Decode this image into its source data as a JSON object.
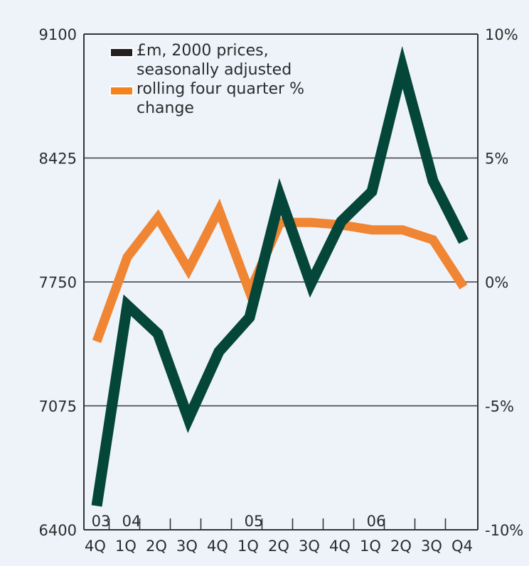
{
  "chart_data": {
    "type": "line",
    "title": "",
    "categories": [
      "4Q",
      "1Q",
      "2Q",
      "3Q",
      "4Q",
      "1Q",
      "2Q",
      "3Q",
      "4Q",
      "1Q",
      "2Q",
      "3Q",
      "Q4"
    ],
    "year_labels": [
      {
        "label": "03",
        "index": 0
      },
      {
        "label": "04",
        "index": 1
      },
      {
        "label": "05",
        "index": 5
      },
      {
        "label": "06",
        "index": 9
      }
    ],
    "left_axis": {
      "ylim": [
        6400,
        9100
      ],
      "ticks": [
        "9100",
        "8425",
        "7750",
        "7075",
        "6400"
      ],
      "tick_values": [
        9100,
        8425,
        7750,
        7075,
        6400
      ]
    },
    "right_axis": {
      "ylim": [
        -10,
        10
      ],
      "ticks": [
        "10%",
        "5%",
        "0%",
        "-5%",
        "-10%"
      ],
      "tick_values": [
        10,
        5,
        0,
        -5,
        -10
      ]
    },
    "grid": true,
    "legend_position": "top-left",
    "series": [
      {
        "name": "£m, 2000 prices, seasonally adjusted",
        "axis": "left",
        "color": "#04463a",
        "legend_swatch_color": "#231f20",
        "values": [
          6530,
          7623,
          7468,
          7004,
          7371,
          7557,
          8215,
          7739,
          8080,
          8242,
          8919,
          8300,
          7971
        ]
      },
      {
        "name": "rolling four quarter % change",
        "axis": "right",
        "color": "#f08533",
        "legend_swatch_color": "#f4821f",
        "values": [
          -2.4,
          1.0,
          2.6,
          0.5,
          2.9,
          -0.4,
          2.4,
          2.4,
          2.3,
          2.1,
          2.1,
          1.7,
          -0.2
        ]
      }
    ]
  },
  "legend": {
    "items": [
      {
        "label": "£m, 2000 prices,\nseasonally adjusted"
      },
      {
        "label": "rolling four quarter %\nchange"
      }
    ]
  }
}
